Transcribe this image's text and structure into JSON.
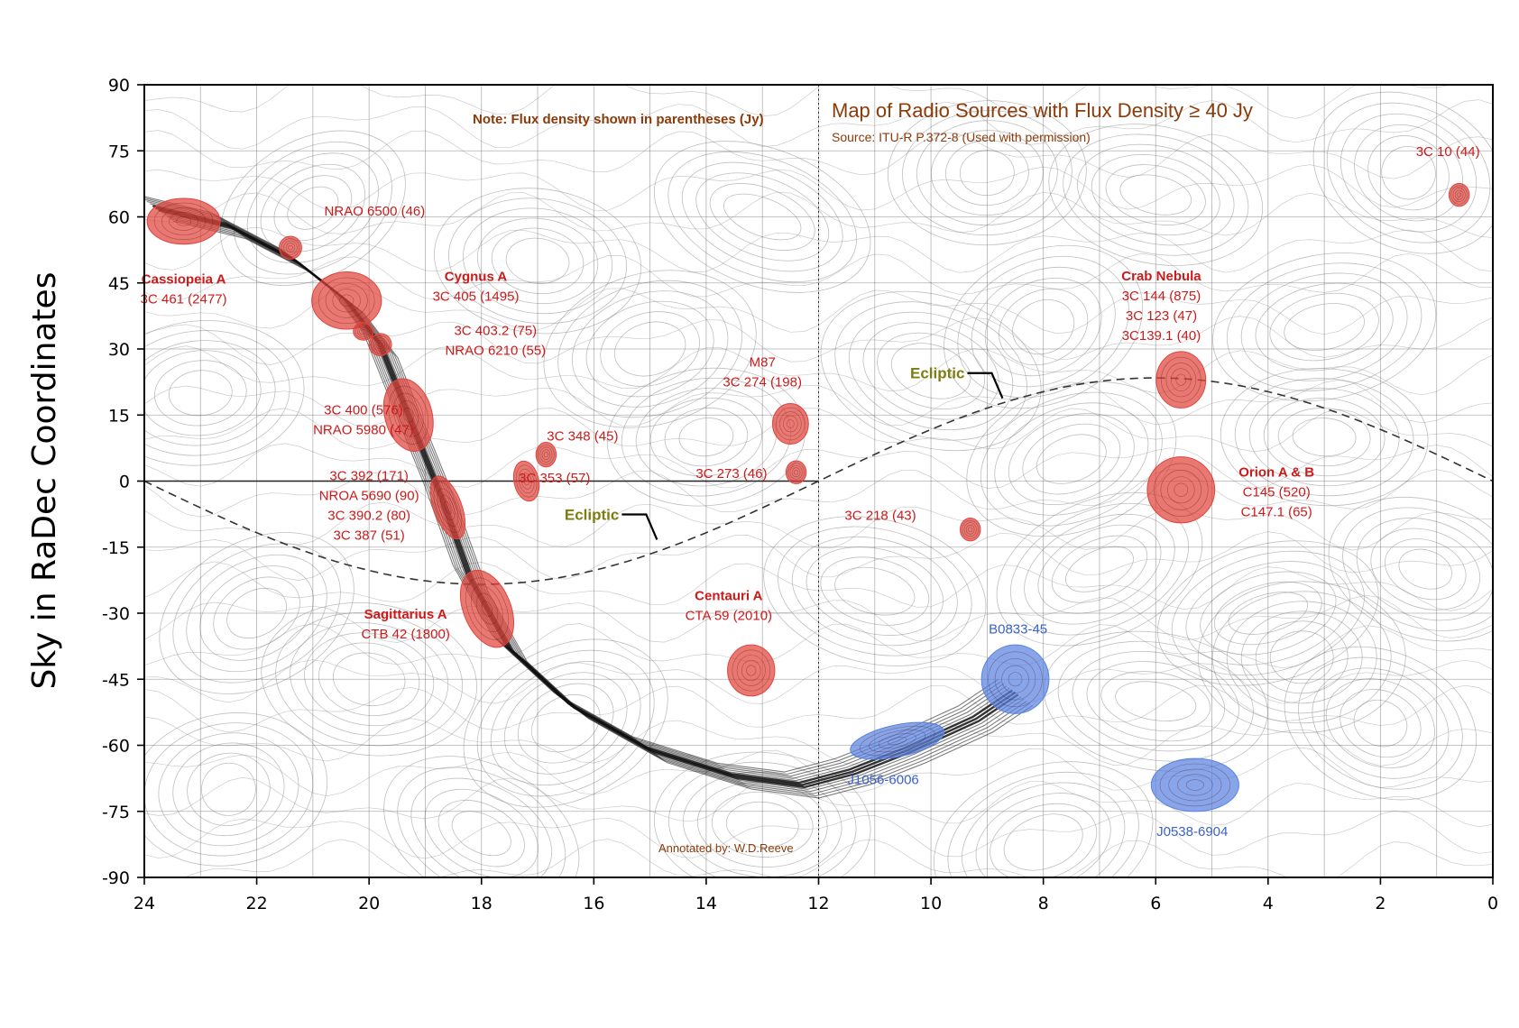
{
  "chart_data": {
    "type": "scatter",
    "title": "Map of Radio Sources with Flux Density ≥ 40 Jy",
    "subtitle": "Source: ITU-R P.372-8 (Used with permission)",
    "note": "Note: Flux density shown in parentheses (Jy)",
    "credit": "Annotated by: W.D.Reeve",
    "xlabel": "",
    "ylabel": "Sky in RaDec Coordinates",
    "xlim": [
      24,
      0
    ],
    "ylim": [
      -90,
      90
    ],
    "xticks": [
      24,
      22,
      20,
      18,
      16,
      14,
      12,
      10,
      8,
      6,
      4,
      2,
      0
    ],
    "yticks": [
      90,
      75,
      60,
      45,
      30,
      15,
      0,
      -15,
      -30,
      -45,
      -60,
      -75,
      -90
    ],
    "grid": true,
    "ecliptic_label": "Ecliptic",
    "red_color": "#e0443c",
    "blue_color": "#5a82e0",
    "ellipses": [
      {
        "id": "cassiopeia",
        "ra": 23.3,
        "dec": 59,
        "rx": 0.65,
        "ry": 5.2,
        "rot": 0,
        "color": "red"
      },
      {
        "id": "nrao6500",
        "ra": 21.4,
        "dec": 53,
        "rx": 0.2,
        "ry": 2.6,
        "rot": 0,
        "color": "red"
      },
      {
        "id": "cygnus",
        "ra": 20.4,
        "dec": 41,
        "rx": 0.62,
        "ry": 6.5,
        "rot": 0,
        "color": "red"
      },
      {
        "id": "3c4032",
        "ra": 20.1,
        "dec": 34,
        "rx": 0.18,
        "ry": 2.0,
        "rot": 0,
        "color": "red"
      },
      {
        "id": "nrao6210",
        "ra": 19.8,
        "dec": 31,
        "rx": 0.2,
        "ry": 2.5,
        "rot": -30,
        "color": "red"
      },
      {
        "id": "3c400",
        "ra": 19.3,
        "dec": 15,
        "rx": 0.42,
        "ry": 8.4,
        "rot": -15,
        "color": "red"
      },
      {
        "id": "3c392",
        "ra": 18.6,
        "dec": -6,
        "rx": 0.25,
        "ry": 7.5,
        "rot": -20,
        "color": "red"
      },
      {
        "id": "sagittarius",
        "ra": 17.9,
        "dec": -29,
        "rx": 0.42,
        "ry": 9.2,
        "rot": -22,
        "color": "red"
      },
      {
        "id": "3c348",
        "ra": 16.85,
        "dec": 6,
        "rx": 0.18,
        "ry": 2.8,
        "rot": 0,
        "color": "red"
      },
      {
        "id": "3c353",
        "ra": 17.2,
        "dec": 0,
        "rx": 0.22,
        "ry": 4.6,
        "rot": -12,
        "color": "red"
      },
      {
        "id": "m87",
        "ra": 12.5,
        "dec": 13,
        "rx": 0.32,
        "ry": 4.6,
        "rot": 0,
        "color": "red"
      },
      {
        "id": "3c273",
        "ra": 12.4,
        "dec": 2,
        "rx": 0.18,
        "ry": 2.6,
        "rot": 0,
        "color": "red"
      },
      {
        "id": "centaurus",
        "ra": 13.2,
        "dec": -43,
        "rx": 0.42,
        "ry": 5.8,
        "rot": 0,
        "color": "red"
      },
      {
        "id": "3c218",
        "ra": 9.3,
        "dec": -11,
        "rx": 0.18,
        "ry": 2.6,
        "rot": 0,
        "color": "red"
      },
      {
        "id": "crab",
        "ra": 5.55,
        "dec": 23,
        "rx": 0.44,
        "ry": 6.4,
        "rot": 0,
        "color": "red"
      },
      {
        "id": "orion",
        "ra": 5.55,
        "dec": -2,
        "rx": 0.6,
        "ry": 7.5,
        "rot": 0,
        "color": "red"
      },
      {
        "id": "3c10",
        "ra": 0.6,
        "dec": 65,
        "rx": 0.18,
        "ry": 2.6,
        "rot": 0,
        "color": "red"
      },
      {
        "id": "b0833",
        "ra": 8.5,
        "dec": -45,
        "rx": 0.6,
        "ry": 7.8,
        "rot": 0,
        "color": "blue"
      },
      {
        "id": "j1056",
        "ra": 10.6,
        "dec": -59,
        "rx": 0.85,
        "ry": 3.6,
        "rot": -12,
        "color": "blue"
      },
      {
        "id": "j0538",
        "ra": 5.3,
        "dec": -69,
        "rx": 0.78,
        "ry": 6.0,
        "rot": 0,
        "color": "blue"
      }
    ],
    "labels": [
      {
        "ra": 23.3,
        "dec": 44.8,
        "lines": [
          {
            "text": "Cassiopeia A",
            "bold": true
          },
          {
            "text": "3C 461 (2477)"
          }
        ]
      },
      {
        "ra": 19.9,
        "dec": 60.3,
        "lines": [
          {
            "text": "NRAO 6500 (46)"
          }
        ]
      },
      {
        "ra": 18.1,
        "dec": 45.5,
        "lines": [
          {
            "text": "Cygnus A",
            "bold": true
          },
          {
            "text": "3C 405 (1495)"
          }
        ]
      },
      {
        "ra": 17.75,
        "dec": 33.2,
        "lines": [
          {
            "text": "3C 403.2 (75)"
          },
          {
            "text": "NRAO 6210 (55)"
          }
        ]
      },
      {
        "ra": 20.1,
        "dec": 15.2,
        "lines": [
          {
            "text": "3C 400 (576)"
          },
          {
            "text": "NRAO 5980 (47)"
          }
        ]
      },
      {
        "ra": 20.0,
        "dec": 0.2,
        "lines": [
          {
            "text": "3C 392 (171)"
          },
          {
            "text": "NROA 5690 (90)"
          },
          {
            "text": "3C 390.2 (80)"
          },
          {
            "text": "3C 387  (51)"
          }
        ]
      },
      {
        "ra": 16.2,
        "dec": 9.2,
        "lines": [
          {
            "text": "3C 348 (45)"
          }
        ]
      },
      {
        "ra": 16.7,
        "dec": -0.3,
        "lines": [
          {
            "text": "3C 353 (57)"
          }
        ]
      },
      {
        "ra": 19.35,
        "dec": -31.2,
        "lines": [
          {
            "text": "Sagittarius A",
            "bold": true
          },
          {
            "text": "CTB 42 (1800)"
          }
        ]
      },
      {
        "ra": 13.0,
        "dec": 26.0,
        "lines": [
          {
            "text": "M87",
            "bold": false
          },
          {
            "text": "3C 274 (198)"
          }
        ]
      },
      {
        "ra": 13.55,
        "dec": 0.7,
        "lines": [
          {
            "text": "3C 273 (46)"
          }
        ]
      },
      {
        "ra": 13.6,
        "dec": -27.0,
        "lines": [
          {
            "text": "Centauri A",
            "bold": true
          },
          {
            "text": "CTA 59 (2010)"
          }
        ]
      },
      {
        "ra": 10.9,
        "dec": -8.8,
        "lines": [
          {
            "text": "3C 218 (43)"
          }
        ]
      },
      {
        "ra": 5.9,
        "dec": 45.6,
        "lines": [
          {
            "text": "Crab Nebula",
            "bold": true
          },
          {
            "text": "3C 144 (875)"
          },
          {
            "text": "3C 123 (47)"
          },
          {
            "text": "3C139.1 (40)"
          }
        ]
      },
      {
        "ra": 3.85,
        "dec": 1.0,
        "lines": [
          {
            "text": "Orion A & B",
            "bold": true
          },
          {
            "text": "C145 (520)"
          },
          {
            "text": "C147.1 (65)"
          }
        ]
      },
      {
        "ra": 0.8,
        "dec": 73.8,
        "lines": [
          {
            "text": "3C 10 (44)"
          }
        ]
      },
      {
        "ra": 8.45,
        "dec": -34.6,
        "color": "blue",
        "lines": [
          {
            "text": "B0833-45"
          }
        ]
      },
      {
        "ra": 10.85,
        "dec": -68.8,
        "color": "blue",
        "lines": [
          {
            "text": "J1056-6006"
          }
        ]
      },
      {
        "ra": 5.35,
        "dec": -80.6,
        "color": "blue",
        "lines": [
          {
            "text": "J0538-6904"
          }
        ]
      }
    ],
    "ecliptic_labels": [
      {
        "ra": 9.4,
        "dec": 23.3
      },
      {
        "ra": 15.55,
        "dec": -8.8
      }
    ]
  }
}
